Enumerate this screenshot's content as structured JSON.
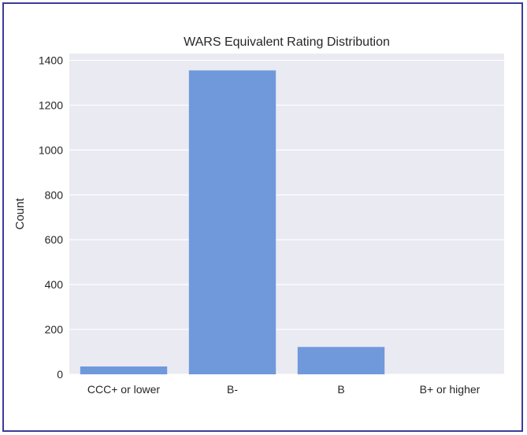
{
  "chart_data": {
    "type": "bar",
    "title": "WARS Equivalent Rating Distribution",
    "xlabel": "",
    "ylabel": "Count",
    "categories": [
      "CCC+ or lower",
      "B-",
      "B",
      "B+ or higher"
    ],
    "values": [
      35,
      1355,
      122,
      0
    ],
    "ylim": [
      0,
      1430
    ],
    "yticks": [
      0,
      200,
      400,
      600,
      800,
      1000,
      1200,
      1400
    ],
    "grid": true,
    "colors": {
      "bar": "#7099dc",
      "plot_background": "#eaeaf2",
      "grid": "#ffffff",
      "frame_border": "#3b3b9a"
    }
  }
}
